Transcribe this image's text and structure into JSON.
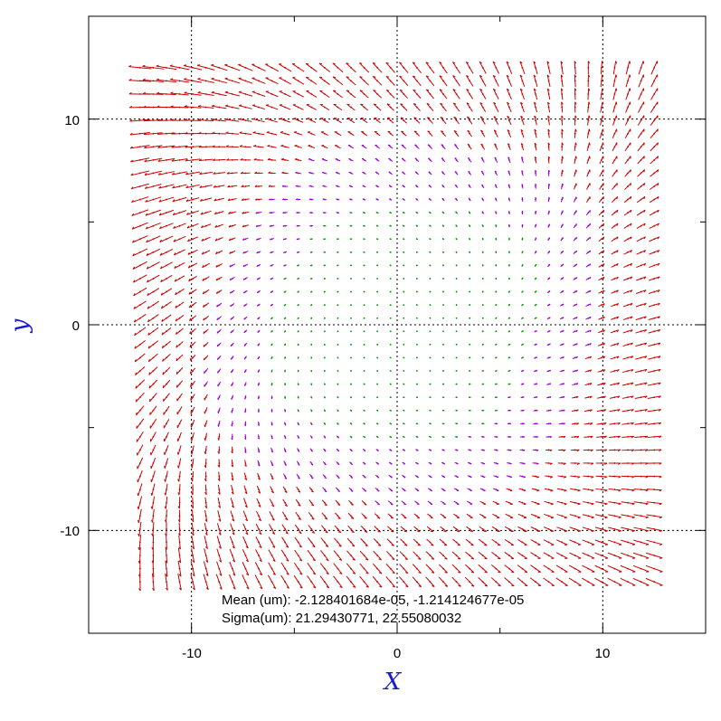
{
  "chart_data": {
    "type": "vector-field",
    "xlabel": "X",
    "ylabel": "y",
    "xlim": [
      -15,
      15
    ],
    "ylim": [
      -15,
      15
    ],
    "xticks": [
      -10,
      0,
      10
    ],
    "yticks": [
      -10,
      0,
      10
    ],
    "x_tick_labels": [
      "-10",
      "0",
      "10"
    ],
    "y_tick_labels": [
      "-10",
      "0",
      "10"
    ],
    "grid": "dotted at major ticks",
    "grid_range": [
      -12.5,
      12.5
    ],
    "grid_points_per_axis": 40,
    "series": [
      {
        "color": "#cc0000",
        "role": "large residual vectors"
      },
      {
        "color": "#9900cc",
        "role": "medium residual vectors"
      },
      {
        "color": "#009900",
        "role": "small residual vectors"
      }
    ],
    "annotations": [
      "Mean (um): -2.128401684e-05, -1.214124677e-05",
      "Sigma(um): 21.29430771, 22.55080032"
    ]
  }
}
